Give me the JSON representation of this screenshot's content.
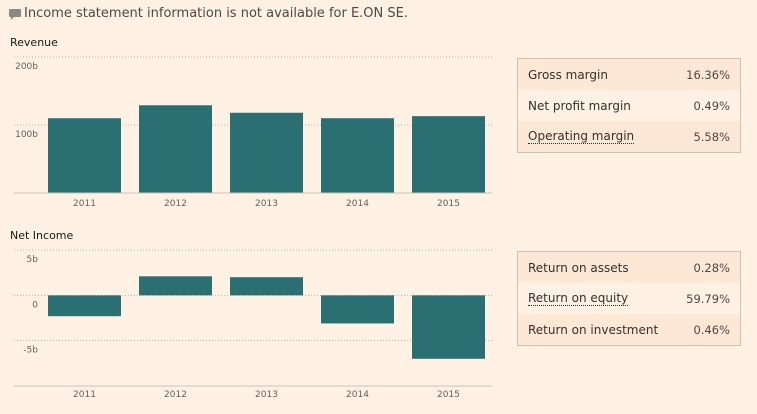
{
  "notice": {
    "icon": "speech-bubble-icon",
    "text": "Income statement information is not available for E.ON SE."
  },
  "colors": {
    "bar": "#2a7073",
    "background": "#fff1e4",
    "grid": "#ccc1b7"
  },
  "chart_data": [
    {
      "type": "bar",
      "title": "Revenue",
      "categories": [
        "2011",
        "2012",
        "2013",
        "2014",
        "2015"
      ],
      "values": [
        110,
        129,
        118,
        110,
        113
      ],
      "units": "b",
      "ylim": [
        0,
        200
      ],
      "yticks": [
        {
          "value": 200,
          "label": "200b"
        },
        {
          "value": 100,
          "label": "100b"
        }
      ],
      "grid": true,
      "xlabel": "",
      "ylabel": ""
    },
    {
      "type": "bar",
      "title": "Net Income",
      "categories": [
        "2011",
        "2012",
        "2013",
        "2014",
        "2015"
      ],
      "values": [
        -2.3,
        2.1,
        2.0,
        -3.1,
        -7.0
      ],
      "units": "b",
      "ylim": [
        -10,
        5
      ],
      "yticks": [
        {
          "value": 5,
          "label": "5b"
        },
        {
          "value": 0,
          "label": "0"
        },
        {
          "value": -5,
          "label": "-5b"
        }
      ],
      "grid": true,
      "xlabel": "",
      "ylabel": ""
    }
  ],
  "margins": [
    {
      "label": "Gross margin",
      "value": "16.36%",
      "dotted": false
    },
    {
      "label": "Net profit margin",
      "value": "0.49%",
      "dotted": false
    },
    {
      "label": "Operating margin",
      "value": "5.58%",
      "dotted": true
    }
  ],
  "returns": [
    {
      "label": "Return on assets",
      "value": "0.28%",
      "dotted": false
    },
    {
      "label": "Return on equity",
      "value": "59.79%",
      "dotted": true
    },
    {
      "label": "Return on investment",
      "value": "0.46%",
      "dotted": false
    }
  ]
}
